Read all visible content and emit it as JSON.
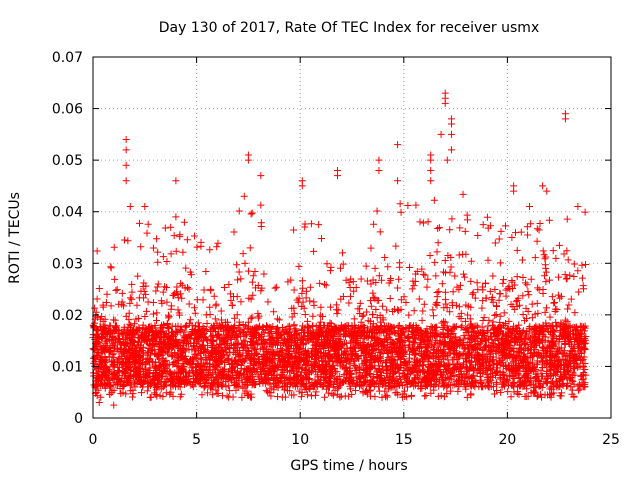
{
  "chart_data": {
    "type": "scatter",
    "title": "Day 130 of 2017, Rate Of TEC Index for receiver usmx",
    "xlabel": "GPS time / hours",
    "ylabel": "ROTI / TECUs",
    "xlim": [
      0,
      25
    ],
    "ylim": [
      0,
      0.07
    ],
    "x_ticks": [
      "0",
      "5",
      "10",
      "15",
      "20",
      "25"
    ],
    "y_ticks": [
      "0",
      "0.01",
      "0.02",
      "0.03",
      "0.04",
      "0.05",
      "0.06",
      "0.07"
    ],
    "x_tick_values": [
      0,
      5,
      10,
      15,
      20,
      25
    ],
    "y_tick_values": [
      0,
      0.01,
      0.02,
      0.03,
      0.04,
      0.05,
      0.06,
      0.07
    ],
    "grid": true,
    "marker": "+",
    "color": "#ff0000",
    "x_range_observed": [
      0,
      23.8
    ],
    "typical_band": [
      0.005,
      0.02
    ],
    "outliers": [
      {
        "x": 1.6,
        "y": 0.054
      },
      {
        "x": 1.6,
        "y": 0.052
      },
      {
        "x": 1.6,
        "y": 0.049
      },
      {
        "x": 1.6,
        "y": 0.046
      },
      {
        "x": 1.8,
        "y": 0.041
      },
      {
        "x": 2.5,
        "y": 0.041
      },
      {
        "x": 4.0,
        "y": 0.046
      },
      {
        "x": 4.0,
        "y": 0.039
      },
      {
        "x": 7.5,
        "y": 0.051
      },
      {
        "x": 7.5,
        "y": 0.05
      },
      {
        "x": 8.1,
        "y": 0.047
      },
      {
        "x": 7.3,
        "y": 0.043
      },
      {
        "x": 10.1,
        "y": 0.046
      },
      {
        "x": 10.1,
        "y": 0.045
      },
      {
        "x": 11.8,
        "y": 0.048
      },
      {
        "x": 11.8,
        "y": 0.047
      },
      {
        "x": 13.8,
        "y": 0.05
      },
      {
        "x": 13.8,
        "y": 0.048
      },
      {
        "x": 14.7,
        "y": 0.053
      },
      {
        "x": 14.7,
        "y": 0.046
      },
      {
        "x": 16.3,
        "y": 0.051
      },
      {
        "x": 16.3,
        "y": 0.05
      },
      {
        "x": 16.3,
        "y": 0.048
      },
      {
        "x": 16.3,
        "y": 0.046
      },
      {
        "x": 17.0,
        "y": 0.063
      },
      {
        "x": 17.0,
        "y": 0.062
      },
      {
        "x": 17.0,
        "y": 0.061
      },
      {
        "x": 16.8,
        "y": 0.055
      },
      {
        "x": 17.3,
        "y": 0.058
      },
      {
        "x": 17.3,
        "y": 0.057
      },
      {
        "x": 17.3,
        "y": 0.055
      },
      {
        "x": 17.3,
        "y": 0.052
      },
      {
        "x": 17.1,
        "y": 0.05
      },
      {
        "x": 20.3,
        "y": 0.045
      },
      {
        "x": 20.3,
        "y": 0.044
      },
      {
        "x": 21.7,
        "y": 0.045
      },
      {
        "x": 21.9,
        "y": 0.044
      },
      {
        "x": 22.8,
        "y": 0.059
      },
      {
        "x": 22.8,
        "y": 0.058
      },
      {
        "x": 23.4,
        "y": 0.041
      },
      {
        "x": 0.3,
        "y": 0.003
      },
      {
        "x": 1.0,
        "y": 0.0025
      }
    ]
  }
}
